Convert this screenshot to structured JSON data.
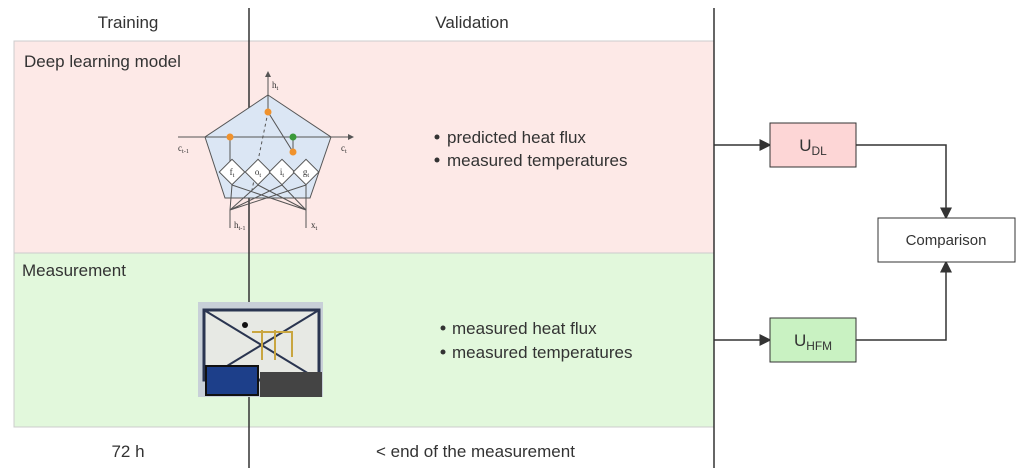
{
  "header": {
    "training": "Training",
    "validation": "Validation"
  },
  "model": {
    "title": "Deep learning model",
    "items": [
      "predicted heat flux",
      "measured temperatures"
    ],
    "cell_labels": [
      {
        "base": "h",
        "sub": "t"
      },
      {
        "base": "c",
        "sub": "t-1"
      },
      {
        "base": "c",
        "sub": "t"
      },
      {
        "base": "f",
        "sub": "t"
      },
      {
        "base": "o",
        "sub": "t"
      },
      {
        "base": "i",
        "sub": "t"
      },
      {
        "base": "g",
        "sub": "t"
      },
      {
        "base": "h",
        "sub": "t-1"
      },
      {
        "base": "x",
        "sub": "t"
      }
    ]
  },
  "measurement": {
    "title": "Measurement",
    "items": [
      "measured heat flux",
      "measured temperatures"
    ]
  },
  "footer": {
    "training": "72 h",
    "validation": "< end of the measurement"
  },
  "outputs": {
    "dl": {
      "base": "U",
      "sub": "DL"
    },
    "hfm": {
      "base": "U",
      "sub": "HFM"
    },
    "comparison": "Comparison"
  }
}
